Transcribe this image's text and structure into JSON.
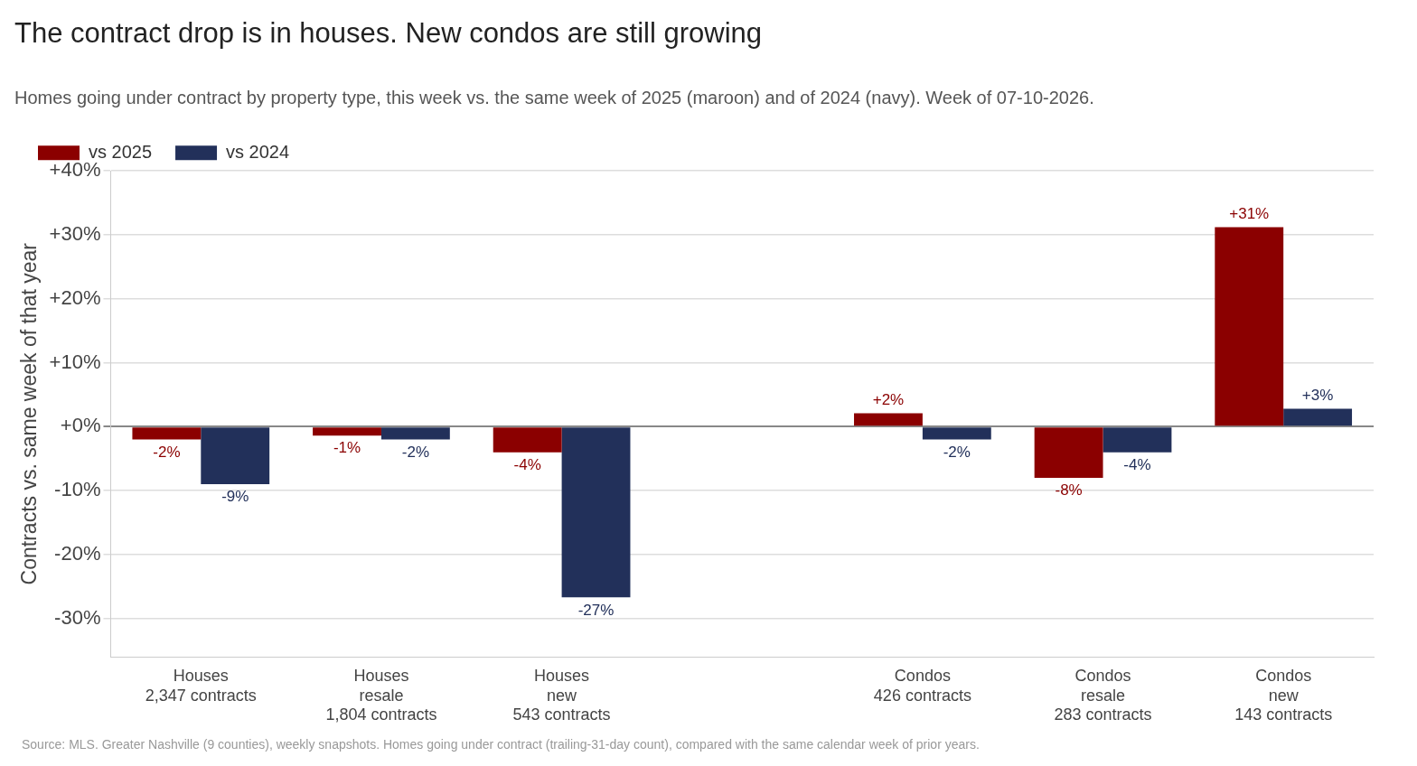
{
  "chart_data": {
    "type": "bar",
    "title": "The contract drop is in houses. New condos are still growing",
    "subtitle": "Homes going under contract by property type, this week vs. the same week of 2025 (maroon) and of 2024 (navy). Week of 07-10-2026.",
    "ylabel": "Contracts vs. same week of that year",
    "categories": [
      "Houses\n2,347 contracts",
      "Houses\nresale\n1,804 contracts",
      "Houses\nnew\n543 contracts",
      null,
      "Condos\n426 contracts",
      "Condos\nresale\n283 contracts",
      "Condos\nnew\n143 contracts"
    ],
    "series": [
      {
        "name": "vs 2025",
        "color": "#8b0000",
        "values": [
          -2,
          -1.4,
          -4,
          null,
          2.1,
          -8,
          31.2
        ],
        "value_labels": [
          "-2%",
          "-1%",
          "-4%",
          null,
          "+2%",
          "-8%",
          "+31%"
        ]
      },
      {
        "name": "vs 2024",
        "color": "#22305a",
        "values": [
          -9,
          -2,
          -26.7,
          null,
          -2,
          -4,
          2.8
        ],
        "value_labels": [
          "-9%",
          "-2%",
          "-27%",
          null,
          "-2%",
          "-4%",
          "+3%"
        ]
      }
    ],
    "ylim": [
      -36,
      40
    ],
    "yticks": [
      {
        "value": -30,
        "label": "-30%"
      },
      {
        "value": -20,
        "label": "-20%"
      },
      {
        "value": -10,
        "label": "-10%"
      },
      {
        "value": 0,
        "label": "+0%"
      },
      {
        "value": 10,
        "label": "+10%"
      },
      {
        "value": 20,
        "label": "+20%"
      },
      {
        "value": 30,
        "label": "+30%"
      },
      {
        "value": 40,
        "label": "+40%"
      }
    ],
    "grid": "y",
    "legend": "top left",
    "annotations": [
      "Source: MLS. Greater Nashville (9 counties), weekly snapshots. Homes going under contract (trailing-31-day count), compared with the same calendar week of prior years."
    ]
  }
}
